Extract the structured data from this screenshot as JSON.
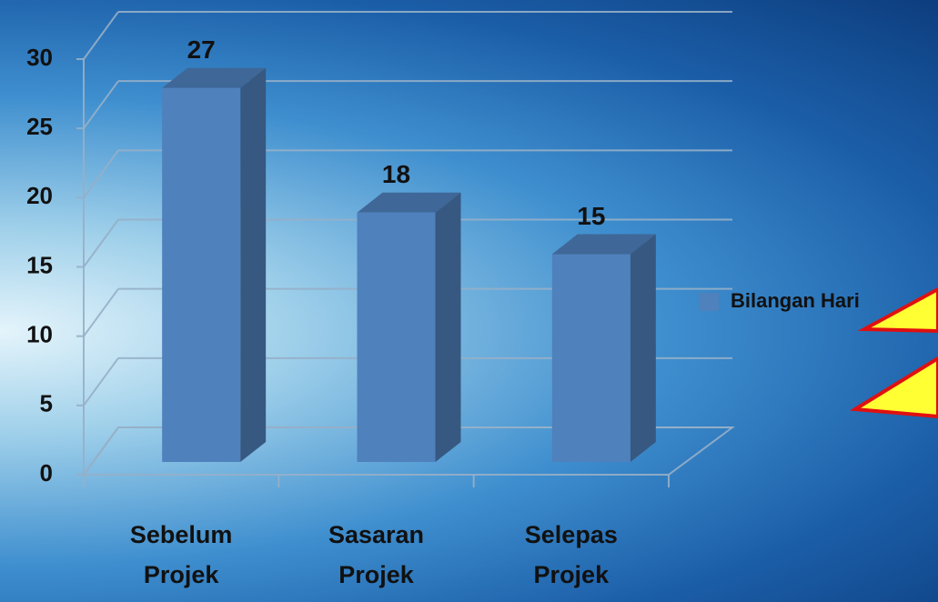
{
  "chart_data": {
    "type": "bar3d",
    "categories": [
      "Sebelum Projek",
      "Sasaran Projek",
      "Selepas Projek"
    ],
    "series": [
      {
        "name": "Bilangan Hari",
        "color": "#4f81bd",
        "values": [
          27,
          18,
          15
        ]
      }
    ],
    "ylim": [
      0,
      30
    ],
    "yticks": [
      0,
      5,
      10,
      15,
      20,
      25,
      30
    ],
    "grid": true,
    "legend": "right"
  }
}
